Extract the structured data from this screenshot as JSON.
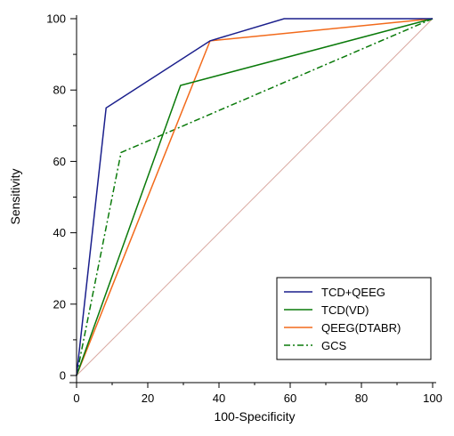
{
  "chart_data": {
    "type": "line",
    "xlabel": "100-Specificity",
    "ylabel": "Sensitivity",
    "xlim": [
      0,
      100
    ],
    "ylim": [
      0,
      100
    ],
    "xticks": [
      "0",
      "20",
      "40",
      "60",
      "80",
      "100"
    ],
    "yticks": [
      "0",
      "20",
      "40",
      "60",
      "80",
      "100"
    ],
    "grid": false,
    "legend_position": "bottom-right",
    "series": [
      {
        "name": "TCD+QEEG",
        "color": "#1a1f8c",
        "dash": "solid",
        "x": [
          0,
          8.3,
          37.5,
          58.3,
          100
        ],
        "y": [
          0,
          75,
          93.8,
          100,
          100
        ]
      },
      {
        "name": "TCD(VD)",
        "color": "#0a7a0a",
        "dash": "solid",
        "x": [
          0,
          29.2,
          100
        ],
        "y": [
          0,
          81.3,
          100
        ]
      },
      {
        "name": "QEEG(DTABR)",
        "color": "#f26a1b",
        "dash": "solid",
        "x": [
          0,
          37.5,
          100
        ],
        "y": [
          0,
          93.8,
          100
        ]
      },
      {
        "name": "GCS",
        "color": "#0a7a0a",
        "dash": "dashdot",
        "x": [
          0,
          12.5,
          100
        ],
        "y": [
          0,
          62.5,
          100
        ]
      }
    ],
    "reference_line": {
      "color": "#d9a8a0",
      "x": [
        0,
        100
      ],
      "y": [
        0,
        100
      ]
    }
  }
}
